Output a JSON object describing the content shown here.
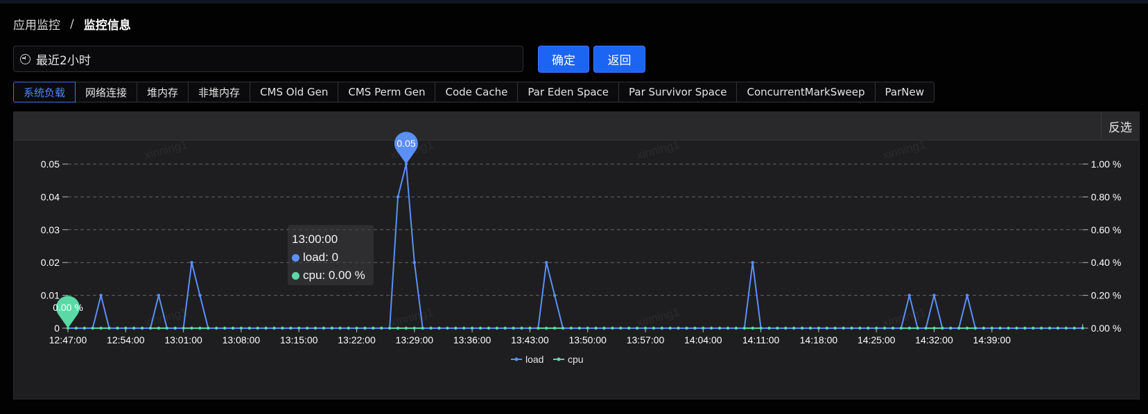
{
  "breadcrumb": {
    "parent": "应用监控",
    "separator": "/",
    "current": "监控信息"
  },
  "time_range": {
    "value": "最近2小时",
    "icon": "clock-icon"
  },
  "buttons": {
    "confirm": "确定",
    "back": "返回"
  },
  "tabs": [
    {
      "label": "系统负载",
      "active": true
    },
    {
      "label": "网络连接",
      "active": false
    },
    {
      "label": "堆内存",
      "active": false
    },
    {
      "label": "非堆内存",
      "active": false
    },
    {
      "label": "CMS Old Gen",
      "active": false
    },
    {
      "label": "CMS Perm Gen",
      "active": false
    },
    {
      "label": "Code Cache",
      "active": false
    },
    {
      "label": "Par Eden Space",
      "active": false
    },
    {
      "label": "Par Survivor Space",
      "active": false
    },
    {
      "label": "ConcurrentMarkSweep",
      "active": false
    },
    {
      "label": "ParNew",
      "active": false
    }
  ],
  "panel": {
    "invert_label": "反选",
    "watermark": "xinning1"
  },
  "tooltip": {
    "time": "13:00:00",
    "load_text": "load: 0",
    "cpu_text": "cpu: 0.00 %"
  },
  "colors": {
    "load": "#5b8ff9",
    "cpu": "#5ad8a6",
    "accent": "#1c64f2"
  },
  "chart_data": {
    "type": "line",
    "x_start": "12:47:00",
    "x_step_seconds": 60,
    "x_tick_labels": [
      "12:47:00",
      "12:54:00",
      "13:01:00",
      "13:08:00",
      "13:15:00",
      "13:22:00",
      "13:29:00",
      "13:36:00",
      "13:43:00",
      "13:50:00",
      "13:57:00",
      "14:04:00",
      "14:11:00",
      "14:18:00",
      "14:25:00",
      "14:32:00",
      "14:39:00"
    ],
    "y_left": {
      "ticks": [
        0,
        0.01,
        0.02,
        0.03,
        0.04,
        0.05
      ],
      "tick_labels": [
        "0",
        "0.01",
        "0.02",
        "0.03",
        "0.04",
        "0.05"
      ],
      "range": [
        0,
        0.05
      ]
    },
    "y_right": {
      "ticks": [
        0,
        0.2,
        0.4,
        0.6,
        0.8,
        1.0
      ],
      "tick_labels": [
        "0.00 %",
        "0.20 %",
        "0.40 %",
        "0.60 %",
        "0.80 %",
        "1.00 %"
      ],
      "range": [
        0,
        1.0
      ]
    },
    "grid": true,
    "legend_position": "bottom-center",
    "series": [
      {
        "name": "load",
        "axis": "left",
        "color": "#5b8ff9",
        "values": [
          0,
          0,
          0,
          0,
          0.01,
          0,
          0,
          0,
          0,
          0,
          0,
          0.01,
          0,
          0,
          0,
          0.02,
          0.01,
          0,
          0,
          0,
          0,
          0,
          0,
          0,
          0,
          0,
          0,
          0,
          0,
          0,
          0,
          0,
          0,
          0,
          0,
          0,
          0,
          0,
          0,
          0,
          0.04,
          0.05,
          0.02,
          0,
          0,
          0,
          0,
          0,
          0,
          0,
          0,
          0,
          0,
          0,
          0,
          0,
          0,
          0,
          0.02,
          0.01,
          0,
          0,
          0,
          0,
          0,
          0,
          0,
          0,
          0,
          0,
          0,
          0,
          0,
          0,
          0,
          0,
          0,
          0,
          0,
          0,
          0,
          0,
          0,
          0.02,
          0,
          0,
          0,
          0,
          0,
          0,
          0,
          0,
          0,
          0,
          0,
          0,
          0,
          0,
          0,
          0,
          0,
          0,
          0.01,
          0,
          0,
          0.01,
          0,
          0,
          0,
          0.01,
          0,
          0,
          0,
          0,
          0,
          0,
          0,
          0,
          0,
          0,
          0,
          0,
          0,
          0
        ]
      },
      {
        "name": "cpu",
        "axis": "right",
        "unit": "%",
        "color": "#5ad8a6",
        "values": "all 0.00 (121 points)"
      }
    ],
    "markers": [
      {
        "series": "load",
        "label": "0.05",
        "type": "max"
      },
      {
        "series": "cpu",
        "label": "0.00 %",
        "type": "max"
      }
    ]
  }
}
